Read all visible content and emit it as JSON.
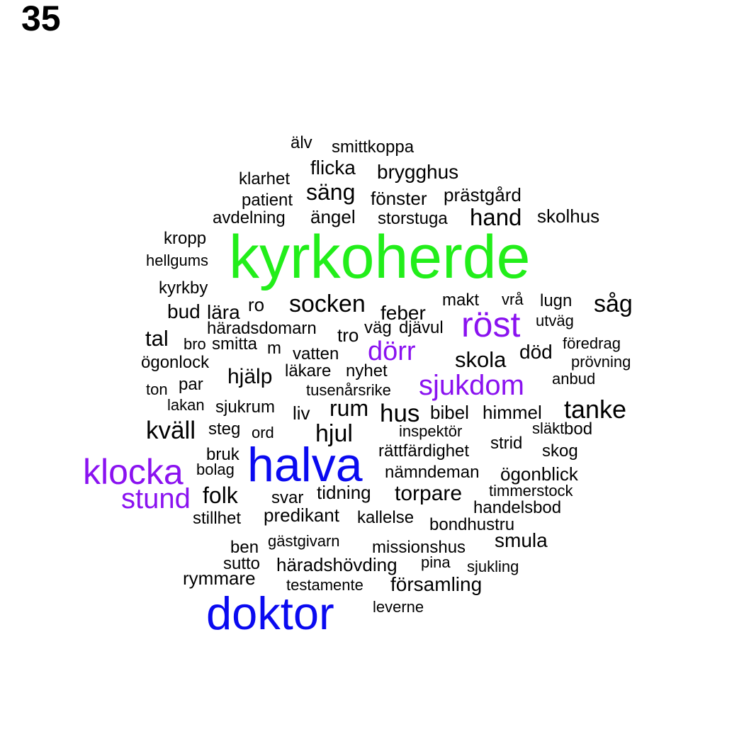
{
  "page_number": "35",
  "colors": {
    "green": "#22ee1a",
    "purple": "#8a12f0",
    "blue": "#0a0af0",
    "black": "#000000"
  },
  "words": [
    {
      "text": "älv",
      "color": "black"
    },
    {
      "text": "smittkoppa",
      "color": "black"
    },
    {
      "text": "flicka",
      "color": "black"
    },
    {
      "text": "brygghus",
      "color": "black"
    },
    {
      "text": "klarhet",
      "color": "black"
    },
    {
      "text": "säng",
      "color": "black"
    },
    {
      "text": "patient",
      "color": "black"
    },
    {
      "text": "fönster",
      "color": "black"
    },
    {
      "text": "prästgård",
      "color": "black"
    },
    {
      "text": "avdelning",
      "color": "black"
    },
    {
      "text": "ängel",
      "color": "black"
    },
    {
      "text": "storstuga",
      "color": "black"
    },
    {
      "text": "hand",
      "color": "black"
    },
    {
      "text": "skolhus",
      "color": "black"
    },
    {
      "text": "kropp",
      "color": "black"
    },
    {
      "text": "kyrkoherde",
      "color": "green"
    },
    {
      "text": "hellgums",
      "color": "black"
    },
    {
      "text": "kyrkby",
      "color": "black"
    },
    {
      "text": "ro",
      "color": "black"
    },
    {
      "text": "socken",
      "color": "black"
    },
    {
      "text": "makt",
      "color": "black"
    },
    {
      "text": "vrå",
      "color": "black"
    },
    {
      "text": "lugn",
      "color": "black"
    },
    {
      "text": "såg",
      "color": "black"
    },
    {
      "text": "bud",
      "color": "black"
    },
    {
      "text": "lära",
      "color": "black"
    },
    {
      "text": "feber",
      "color": "black"
    },
    {
      "text": "röst",
      "color": "purple"
    },
    {
      "text": "utväg",
      "color": "black"
    },
    {
      "text": "häradsdomarn",
      "color": "black"
    },
    {
      "text": "väg",
      "color": "black"
    },
    {
      "text": "djävul",
      "color": "black"
    },
    {
      "text": "tro",
      "color": "black"
    },
    {
      "text": "tal",
      "color": "black"
    },
    {
      "text": "bro",
      "color": "black"
    },
    {
      "text": "smitta",
      "color": "black"
    },
    {
      "text": "m",
      "color": "black"
    },
    {
      "text": "dörr",
      "color": "purple"
    },
    {
      "text": "föredrag",
      "color": "black"
    },
    {
      "text": "vatten",
      "color": "black"
    },
    {
      "text": "skola",
      "color": "black"
    },
    {
      "text": "död",
      "color": "black"
    },
    {
      "text": "ögonlock",
      "color": "black"
    },
    {
      "text": "prövning",
      "color": "black"
    },
    {
      "text": "läkare",
      "color": "black"
    },
    {
      "text": "nyhet",
      "color": "black"
    },
    {
      "text": "hjälp",
      "color": "black"
    },
    {
      "text": "anbud",
      "color": "black"
    },
    {
      "text": "par",
      "color": "black"
    },
    {
      "text": "sjukdom",
      "color": "purple"
    },
    {
      "text": "ton",
      "color": "black"
    },
    {
      "text": "tusenårsrike",
      "color": "black"
    },
    {
      "text": "lakan",
      "color": "black"
    },
    {
      "text": "sjukrum",
      "color": "black"
    },
    {
      "text": "rum",
      "color": "black"
    },
    {
      "text": "tanke",
      "color": "black"
    },
    {
      "text": "liv",
      "color": "black"
    },
    {
      "text": "hus",
      "color": "black"
    },
    {
      "text": "bibel",
      "color": "black"
    },
    {
      "text": "himmel",
      "color": "black"
    },
    {
      "text": "kväll",
      "color": "black"
    },
    {
      "text": "steg",
      "color": "black"
    },
    {
      "text": "ord",
      "color": "black"
    },
    {
      "text": "hjul",
      "color": "black"
    },
    {
      "text": "släkt",
      "color": "black"
    },
    {
      "text": "bod",
      "color": "black"
    },
    {
      "text": "inspektör",
      "color": "black"
    },
    {
      "text": "strid",
      "color": "black"
    },
    {
      "text": "bruk",
      "color": "black"
    },
    {
      "text": "rättfärdighet",
      "color": "black"
    },
    {
      "text": "skog",
      "color": "black"
    },
    {
      "text": "klocka",
      "color": "purple"
    },
    {
      "text": "halva",
      "color": "blue"
    },
    {
      "text": "bolag",
      "color": "black"
    },
    {
      "text": "nämndeman",
      "color": "black"
    },
    {
      "text": "ögonblick",
      "color": "black"
    },
    {
      "text": "stund",
      "color": "purple"
    },
    {
      "text": "folk",
      "color": "black"
    },
    {
      "text": "tidning",
      "color": "black"
    },
    {
      "text": "torpare",
      "color": "black"
    },
    {
      "text": "timmerstock",
      "color": "black"
    },
    {
      "text": "svar",
      "color": "black"
    },
    {
      "text": "handelsbod",
      "color": "black"
    },
    {
      "text": "predikant",
      "color": "black"
    },
    {
      "text": "kallelse",
      "color": "black"
    },
    {
      "text": "stillhet",
      "color": "black"
    },
    {
      "text": "bondhustru",
      "color": "black"
    },
    {
      "text": "gästgivarn",
      "color": "black"
    },
    {
      "text": "smula",
      "color": "black"
    },
    {
      "text": "ben",
      "color": "black"
    },
    {
      "text": "missionshus",
      "color": "black"
    },
    {
      "text": "pina",
      "color": "black"
    },
    {
      "text": "sutto",
      "color": "black"
    },
    {
      "text": "häradshövding",
      "color": "black"
    },
    {
      "text": "sjukling",
      "color": "black"
    },
    {
      "text": "rymmare",
      "color": "black"
    },
    {
      "text": "testamente",
      "color": "black"
    },
    {
      "text": "församling",
      "color": "black"
    },
    {
      "text": "doktor",
      "color": "blue"
    },
    {
      "text": "leverne",
      "color": "black"
    }
  ]
}
